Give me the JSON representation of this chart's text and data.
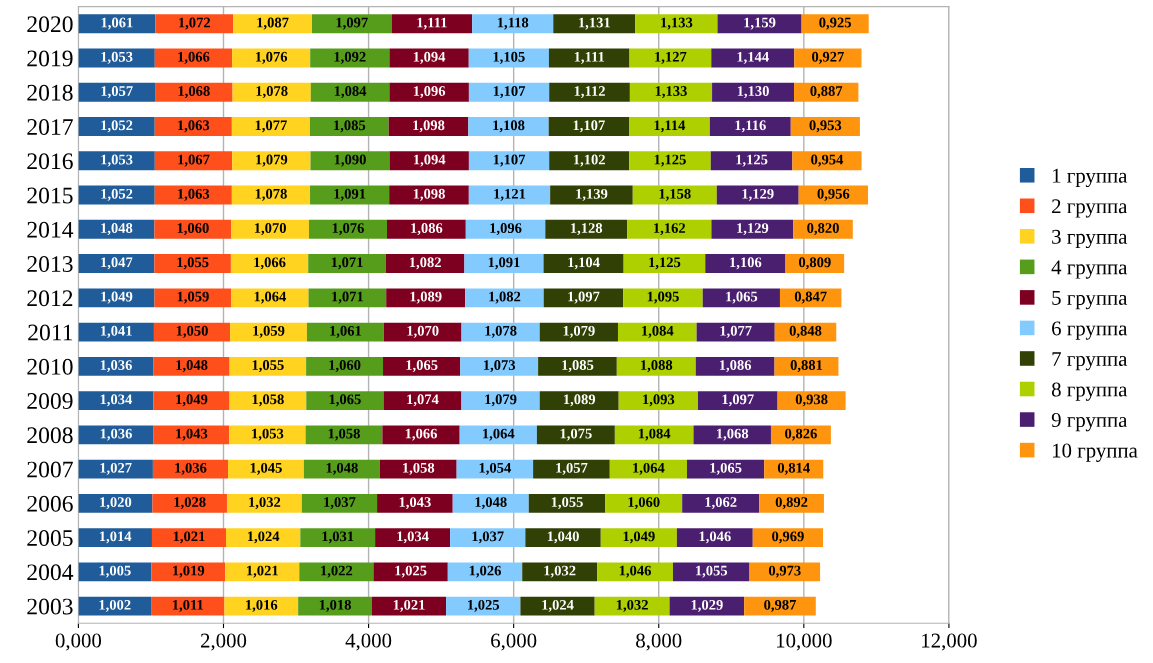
{
  "chart_data": {
    "type": "bar",
    "orientation": "horizontal",
    "stacked": true,
    "grid": "x",
    "legend": "right",
    "categories": [
      "2020",
      "2019",
      "2018",
      "2017",
      "2016",
      "2015",
      "2014",
      "2013",
      "2012",
      "2011",
      "2010",
      "2009",
      "2008",
      "2007",
      "2006",
      "2005",
      "2004",
      "2003"
    ],
    "xlim": [
      0,
      12
    ],
    "xticks": [
      {
        "value": 0,
        "label": "0,000"
      },
      {
        "value": 2,
        "label": "2,000"
      },
      {
        "value": 4,
        "label": "4,000"
      },
      {
        "value": 6,
        "label": "6,000"
      },
      {
        "value": 8,
        "label": "8,000"
      },
      {
        "value": 10,
        "label": "10,000"
      },
      {
        "value": 12,
        "label": "12,000"
      }
    ],
    "series": [
      {
        "name": "1 группа",
        "color": "#1f5c99",
        "values": [
          1.061,
          1.053,
          1.057,
          1.052,
          1.053,
          1.052,
          1.048,
          1.047,
          1.049,
          1.041,
          1.036,
          1.034,
          1.036,
          1.027,
          1.02,
          1.014,
          1.005,
          1.002
        ],
        "value_labels": [
          "1,061",
          "1,053",
          "1,057",
          "1,052",
          "1,053",
          "1,052",
          "1,048",
          "1,047",
          "1,049",
          "1,041",
          "1,036",
          "1,034",
          "1,036",
          "1,027",
          "1,020",
          "1,014",
          "1,005",
          "1,002"
        ]
      },
      {
        "name": "2 группа",
        "color": "#ff4f1a",
        "values": [
          1.072,
          1.066,
          1.068,
          1.063,
          1.067,
          1.063,
          1.06,
          1.055,
          1.059,
          1.05,
          1.048,
          1.049,
          1.043,
          1.036,
          1.028,
          1.021,
          1.019,
          1.011
        ],
        "value_labels": [
          "1,072",
          "1,066",
          "1,068",
          "1,063",
          "1,067",
          "1,063",
          "1,060",
          "1,055",
          "1,059",
          "1,050",
          "1,048",
          "1,049",
          "1,043",
          "1,036",
          "1,028",
          "1,021",
          "1,019",
          "1,011"
        ]
      },
      {
        "name": "3 группа",
        "color": "#ffd320",
        "values": [
          1.087,
          1.076,
          1.078,
          1.077,
          1.079,
          1.078,
          1.07,
          1.066,
          1.064,
          1.059,
          1.055,
          1.058,
          1.053,
          1.045,
          1.032,
          1.024,
          1.021,
          1.016
        ],
        "value_labels": [
          "1,087",
          "1,076",
          "1,078",
          "1,077",
          "1,079",
          "1,078",
          "1,070",
          "1,066",
          "1,064",
          "1,059",
          "1,055",
          "1,058",
          "1,053",
          "1,045",
          "1,032",
          "1,024",
          "1,021",
          "1,016"
        ]
      },
      {
        "name": "4 группа",
        "color": "#579d1c",
        "values": [
          1.097,
          1.092,
          1.084,
          1.085,
          1.09,
          1.091,
          1.076,
          1.071,
          1.071,
          1.061,
          1.06,
          1.065,
          1.058,
          1.048,
          1.037,
          1.031,
          1.022,
          1.018
        ],
        "value_labels": [
          "1,097",
          "1,092",
          "1,084",
          "1,085",
          "1,090",
          "1,091",
          "1,076",
          "1,071",
          "1,071",
          "1,061",
          "1,060",
          "1,065",
          "1,058",
          "1,048",
          "1,037",
          "1,031",
          "1,022",
          "1,018"
        ]
      },
      {
        "name": "5 группа",
        "color": "#7e0021",
        "values": [
          1.111,
          1.094,
          1.096,
          1.098,
          1.094,
          1.098,
          1.086,
          1.082,
          1.089,
          1.07,
          1.065,
          1.074,
          1.066,
          1.058,
          1.043,
          1.034,
          1.025,
          1.021
        ],
        "value_labels": [
          "1,111",
          "1,094",
          "1,096",
          "1,098",
          "1,094",
          "1,098",
          "1,086",
          "1,082",
          "1,089",
          "1,070",
          "1,065",
          "1,074",
          "1,066",
          "1,058",
          "1,043",
          "1,034",
          "1,025",
          "1,021"
        ]
      },
      {
        "name": "6 группа",
        "color": "#83caff",
        "values": [
          1.118,
          1.105,
          1.107,
          1.108,
          1.107,
          1.121,
          1.096,
          1.091,
          1.082,
          1.078,
          1.073,
          1.079,
          1.064,
          1.054,
          1.048,
          1.037,
          1.026,
          1.025
        ],
        "value_labels": [
          "1,118",
          "1,105",
          "1,107",
          "1,108",
          "1,107",
          "1,121",
          "1,096",
          "1,091",
          "1,082",
          "1,078",
          "1,073",
          "1,079",
          "1,064",
          "1,054",
          "1,048",
          "1,037",
          "1,026",
          "1,025"
        ]
      },
      {
        "name": "7 группа",
        "color": "#314004",
        "values": [
          1.131,
          1.111,
          1.112,
          1.107,
          1.102,
          1.139,
          1.128,
          1.104,
          1.097,
          1.079,
          1.085,
          1.089,
          1.075,
          1.057,
          1.055,
          1.04,
          1.032,
          1.024
        ],
        "value_labels": [
          "1,131",
          "1,111",
          "1,112",
          "1,107",
          "1,102",
          "1,139",
          "1,128",
          "1,104",
          "1,097",
          "1,079",
          "1,085",
          "1,089",
          "1,075",
          "1,057",
          "1,055",
          "1,040",
          "1,032",
          "1,024"
        ]
      },
      {
        "name": "8 группа",
        "color": "#aecf00",
        "values": [
          1.133,
          1.127,
          1.133,
          1.114,
          1.125,
          1.158,
          1.162,
          1.125,
          1.095,
          1.084,
          1.088,
          1.093,
          1.084,
          1.064,
          1.06,
          1.049,
          1.046,
          1.032
        ],
        "value_labels": [
          "1,133",
          "1,127",
          "1,133",
          "1,114",
          "1,125",
          "1,158",
          "1,162",
          "1,125",
          "1,095",
          "1,084",
          "1,088",
          "1,093",
          "1,084",
          "1,064",
          "1,060",
          "1,049",
          "1,046",
          "1,032"
        ]
      },
      {
        "name": "9 группа",
        "color": "#4b1f6f",
        "values": [
          1.159,
          1.144,
          1.13,
          1.116,
          1.125,
          1.129,
          1.129,
          1.106,
          1.065,
          1.077,
          1.086,
          1.097,
          1.068,
          1.065,
          1.062,
          1.046,
          1.055,
          1.029
        ],
        "value_labels": [
          "1,159",
          "1,144",
          "1,130",
          "1,116",
          "1,125",
          "1,129",
          "1,129",
          "1,106",
          "1,065",
          "1,077",
          "1,086",
          "1,097",
          "1,068",
          "1,065",
          "1,062",
          "1,046",
          "1,055",
          "1,029"
        ]
      },
      {
        "name": "10 группа",
        "color": "#ff950e",
        "values": [
          0.925,
          0.927,
          0.887,
          0.953,
          0.954,
          0.956,
          0.82,
          0.809,
          0.847,
          0.848,
          0.881,
          0.938,
          0.826,
          0.814,
          0.892,
          0.969,
          0.973,
          0.987
        ],
        "value_labels": [
          "0,925",
          "0,927",
          "0,887",
          "0,953",
          "0,954",
          "0,956",
          "0,820",
          "0,809",
          "0,847",
          "0,848",
          "0,881",
          "0,938",
          "0,826",
          "0,814",
          "0,892",
          "0,969",
          "0,973",
          "0,987"
        ]
      }
    ]
  }
}
